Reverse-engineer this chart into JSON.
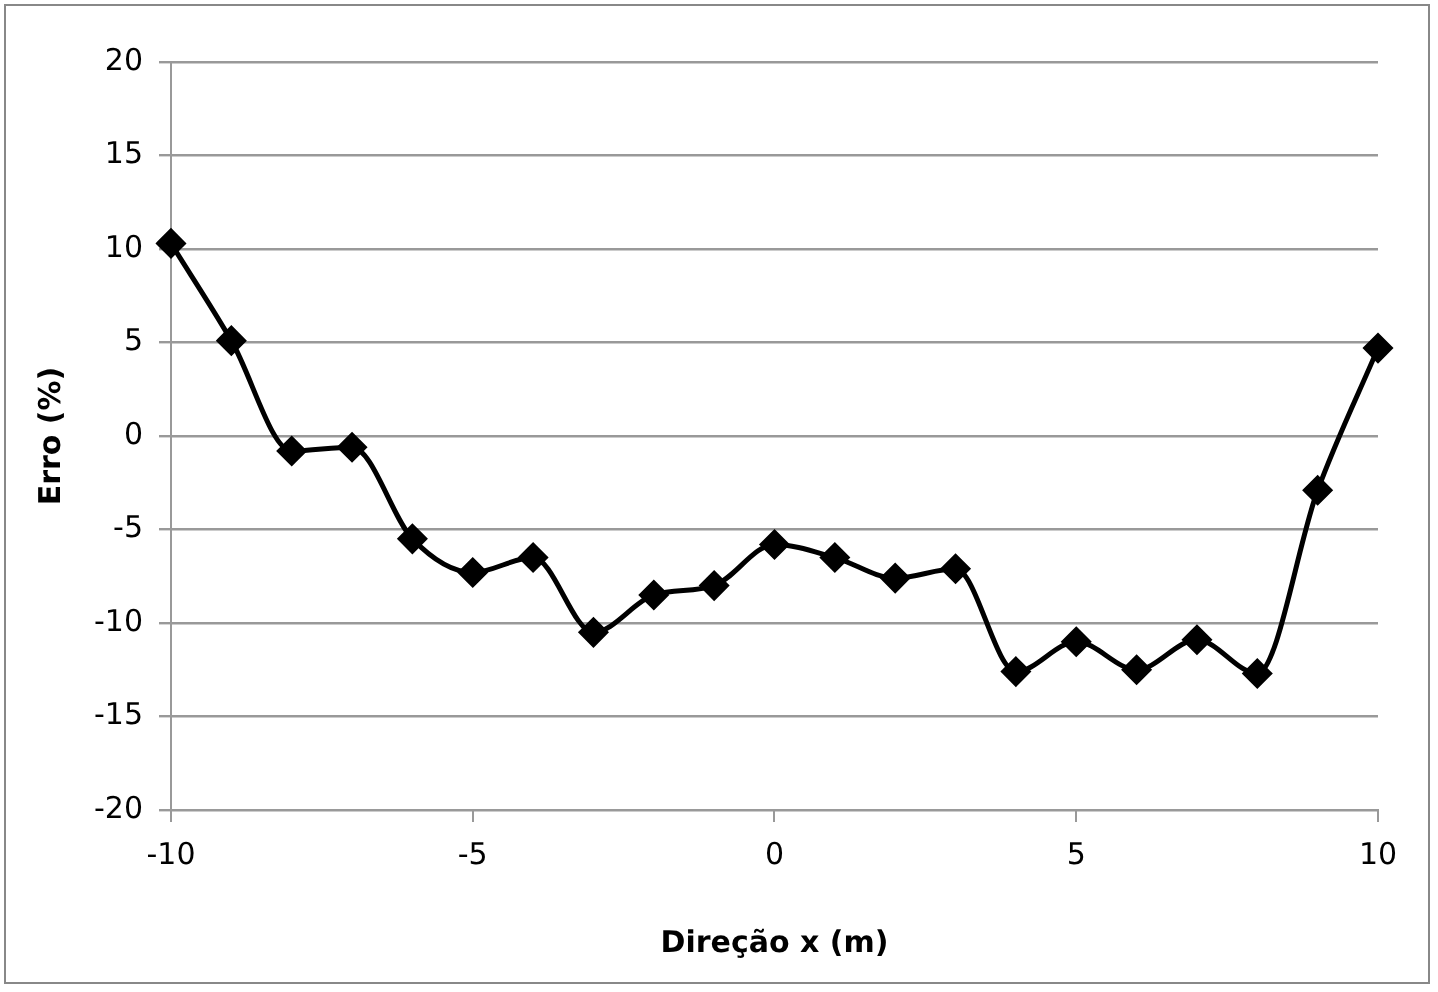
{
  "chart_data": {
    "type": "line",
    "xlabel": "Direção x (m)",
    "ylabel": "Erro (%)",
    "x": [
      -10,
      -9,
      -8,
      -7,
      -6,
      -5,
      -4,
      -3,
      -2,
      -1,
      0,
      1,
      2,
      3,
      4,
      5,
      6,
      7,
      8,
      9,
      10
    ],
    "series": [
      {
        "color": "#000000",
        "values": [
          10.3,
          5.1,
          -0.8,
          -0.6,
          -5.5,
          -7.3,
          -6.5,
          -10.5,
          -8.5,
          -8.0,
          -5.8,
          -6.5,
          -7.6,
          -7.1,
          -12.6,
          -11.0,
          -12.5,
          -10.9,
          -12.7,
          -2.9,
          4.7
        ]
      }
    ],
    "xlim": [
      -10,
      10
    ],
    "xticks": [
      -10,
      -5,
      0,
      5,
      10
    ],
    "ylim": [
      -20,
      20
    ],
    "yticks": [
      -20,
      -15,
      -10,
      -5,
      0,
      5,
      10,
      15,
      20
    ],
    "grid": "y",
    "legend": false,
    "marker": "diamond",
    "line_style": "solid"
  }
}
